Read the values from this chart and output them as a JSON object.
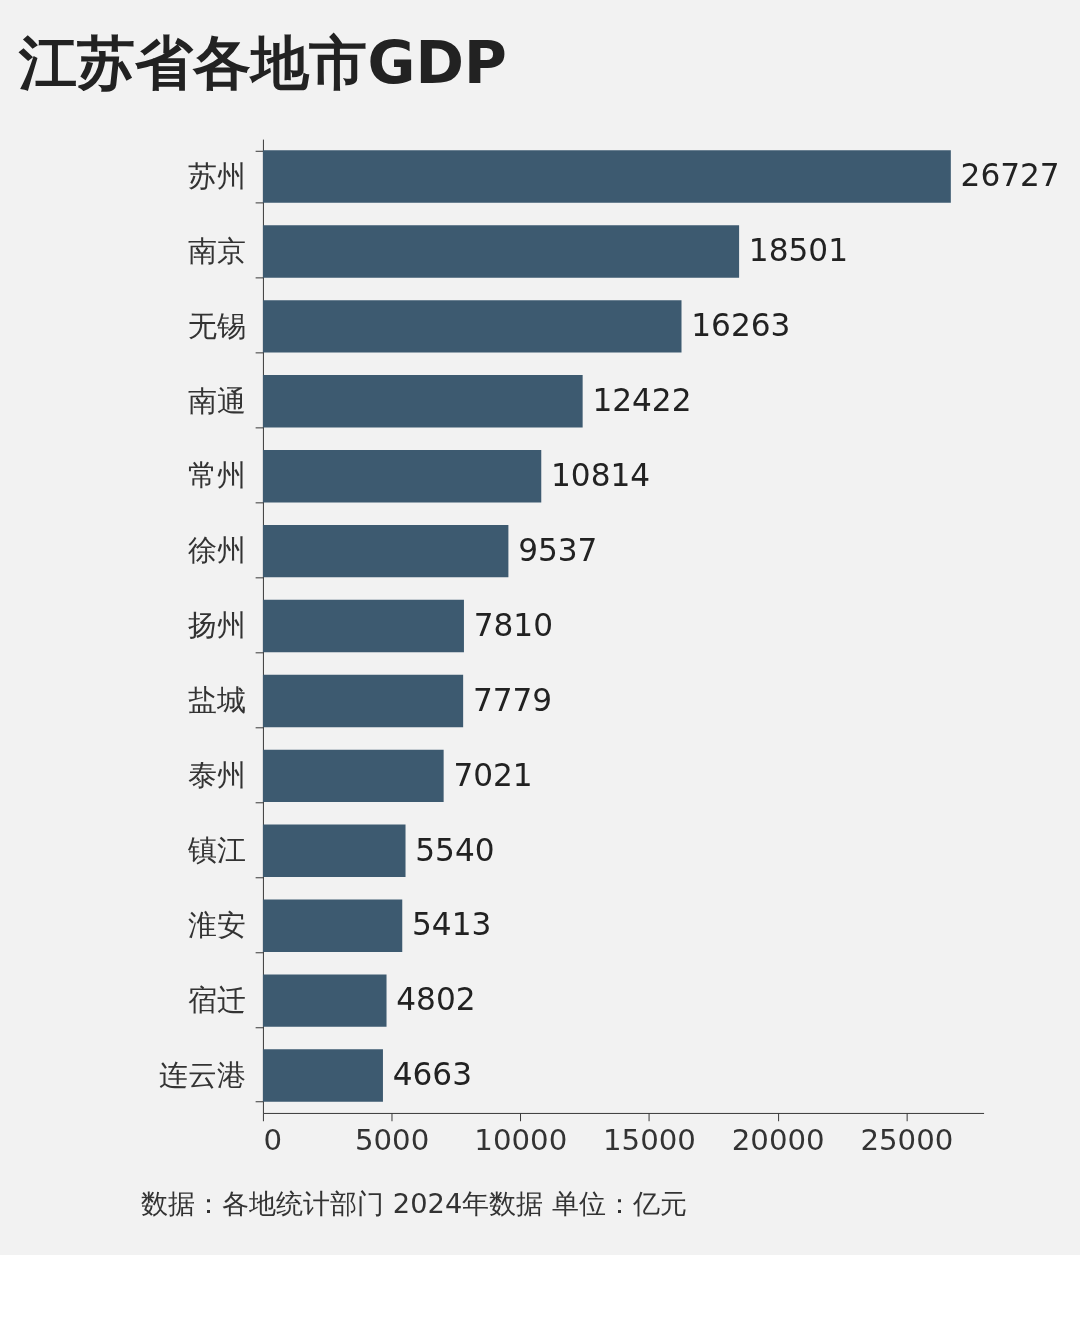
{
  "chart_data": {
    "type": "bar",
    "orientation": "horizontal",
    "title": "江苏省各地市GDP",
    "categories": [
      "苏州",
      "南京",
      "无锡",
      "南通",
      "常州",
      "徐州",
      "扬州",
      "盐城",
      "泰州",
      "镇江",
      "淮安",
      "宿迁",
      "连云港"
    ],
    "values": [
      26727,
      18501,
      16263,
      12422,
      10814,
      9537,
      7810,
      7779,
      7021,
      5540,
      5413,
      4802,
      4663
    ],
    "color": "#3d5a70",
    "xlim": [
      0,
      28000
    ],
    "xticks": [
      0,
      5000,
      10000,
      15000,
      20000,
      25000
    ],
    "data_labels": true,
    "grid": false,
    "annotations": [
      "数据：各地统计部门 2024年数据 单位：亿元"
    ]
  }
}
